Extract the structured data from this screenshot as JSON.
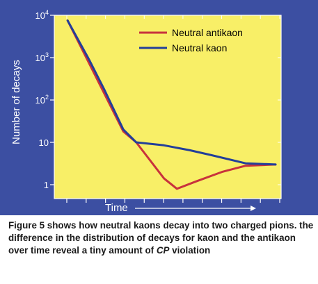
{
  "chart_data": {
    "type": "line",
    "xlabel": "Time",
    "ylabel": "Number of decays",
    "y_scale": "log",
    "ylim": [
      0.5,
      10000
    ],
    "xlim": [
      0,
      10
    ],
    "y_ticks": [
      {
        "value": 1,
        "base": "1",
        "exp": ""
      },
      {
        "value": 10,
        "base": "10",
        "exp": ""
      },
      {
        "value": 100,
        "base": "10",
        "exp": "2"
      },
      {
        "value": 1000,
        "base": "10",
        "exp": "3"
      },
      {
        "value": 10000,
        "base": "10",
        "exp": "4"
      }
    ],
    "x_tick_count": 12,
    "legend_position": "top-right",
    "series": [
      {
        "name": "Neutral antikaon",
        "color": "#c8323c",
        "x": [
          0.3,
          2.9,
          3.5,
          4.8,
          5.4,
          6.3,
          7.5,
          8.6,
          10.0
        ],
        "y": [
          7500,
          18,
          10,
          1.4,
          0.8,
          1.2,
          2.0,
          2.8,
          3.0
        ]
      },
      {
        "name": "Neutral kaon",
        "color": "#233f99",
        "x": [
          0.3,
          0.8,
          1.3,
          2.0,
          2.9,
          3.5,
          4.8,
          6.0,
          7.0,
          8.6,
          10.0
        ],
        "y": [
          7500,
          2600,
          900,
          180,
          20,
          10,
          8.5,
          6.5,
          5.0,
          3.2,
          3.0
        ]
      }
    ]
  },
  "caption": {
    "text_before": "Figure 5 shows how neutral kaons decay into two charged pions. the difference in the distribution of decays for kaon and the antikaon over time reveal a tiny amount of ",
    "cp": "CP",
    "text_after": " violation"
  }
}
